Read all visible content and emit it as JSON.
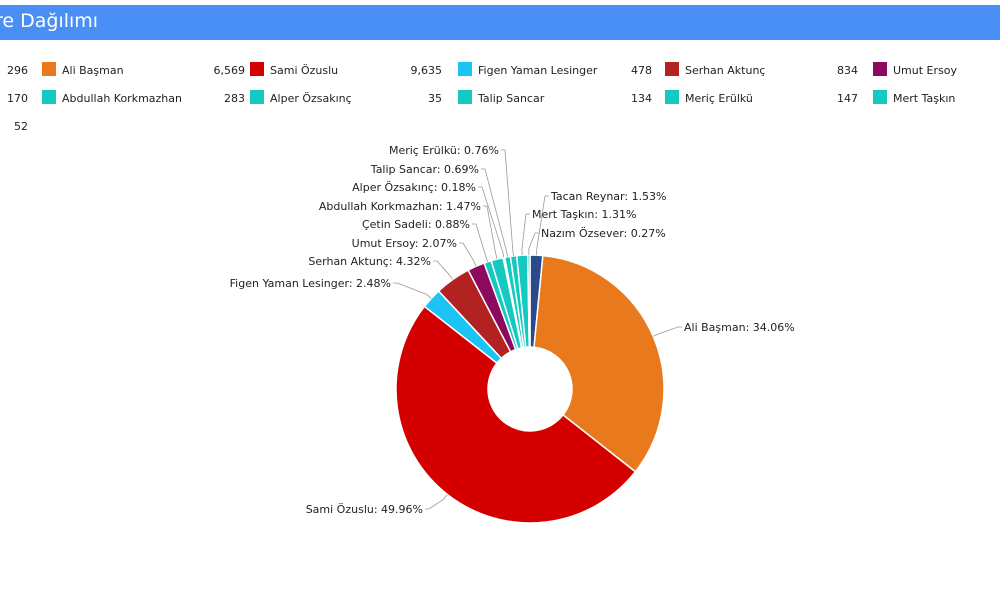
{
  "header": {
    "title": "re Dağılımı"
  },
  "legend": {
    "items": [
      {
        "value": "296",
        "label": "Ali Başman",
        "color": "#e8791c"
      },
      {
        "value": "6,569",
        "label": "Sami Özuslu",
        "color": "#d40000"
      },
      {
        "value": "9,635",
        "label": "Figen Yaman Lesinger",
        "color": "#1cc3f5"
      },
      {
        "value": "478",
        "label": "Serhan Aktunç",
        "color": "#b22222"
      },
      {
        "value": "834",
        "label": "Umut Ersoy",
        "color": "#8b0a5e"
      },
      {
        "value": "170",
        "label": "Abdullah Korkmazhan",
        "color": "#14c9c0"
      },
      {
        "value": "283",
        "label": "Alper Özsakınç",
        "color": "#14c9c0"
      },
      {
        "value": "35",
        "label": "Talip Sancar",
        "color": "#14c9c0"
      },
      {
        "value": "134",
        "label": "Meriç Erülkü",
        "color": "#14c9c0"
      },
      {
        "value": "147",
        "label": "Mert Taşkın",
        "color": "#14c9c0"
      },
      {
        "value": "52",
        "label": "",
        "color": ""
      }
    ]
  },
  "chart_data": {
    "type": "pie",
    "donut": true,
    "slices": [
      {
        "label": "Tacan Reynar",
        "percent": 1.53,
        "display": "Tacan Reynar: 1.53%",
        "color": "#2a4a8c"
      },
      {
        "label": "Ali Başman",
        "percent": 34.06,
        "display": "Ali Başman: 34.06%",
        "color": "#e8791c"
      },
      {
        "label": "Sami Özuslu",
        "percent": 49.96,
        "display": "Sami Özuslu: 49.96%",
        "color": "#d40000"
      },
      {
        "label": "Figen Yaman Lesinger",
        "percent": 2.48,
        "display": "Figen Yaman Lesinger: 2.48%",
        "color": "#1cc3f5"
      },
      {
        "label": "Serhan Aktunç",
        "percent": 4.32,
        "display": "Serhan Aktunç: 4.32%",
        "color": "#b22222"
      },
      {
        "label": "Umut Ersoy",
        "percent": 2.07,
        "display": "Umut Ersoy: 2.07%",
        "color": "#8b0a5e"
      },
      {
        "label": "Çetin Sadeli",
        "percent": 0.88,
        "display": "Çetin Sadeli: 0.88%",
        "color": "#14c9c0"
      },
      {
        "label": "Abdullah Korkmazhan",
        "percent": 1.47,
        "display": "Abdullah Korkmazhan: 1.47%",
        "color": "#14c9c0"
      },
      {
        "label": "Alper Özsakınç",
        "percent": 0.18,
        "display": "Alper Özsakınç: 0.18%",
        "color": "#14c9c0"
      },
      {
        "label": "Talip Sancar",
        "percent": 0.69,
        "display": "Talip Sancar: 0.69%",
        "color": "#14c9c0"
      },
      {
        "label": "Meriç Erülkü",
        "percent": 0.76,
        "display": "Meriç Erülkü: 0.76%",
        "color": "#14c9c0"
      },
      {
        "label": "Mert Taşkın",
        "percent": 1.31,
        "display": "Mert Taşkın: 1.31%",
        "color": "#14c9c0"
      },
      {
        "label": "Nazım Özsever",
        "percent": 0.27,
        "display": "Nazım Özsever: 0.27%",
        "color": "#14c9c0"
      }
    ]
  }
}
